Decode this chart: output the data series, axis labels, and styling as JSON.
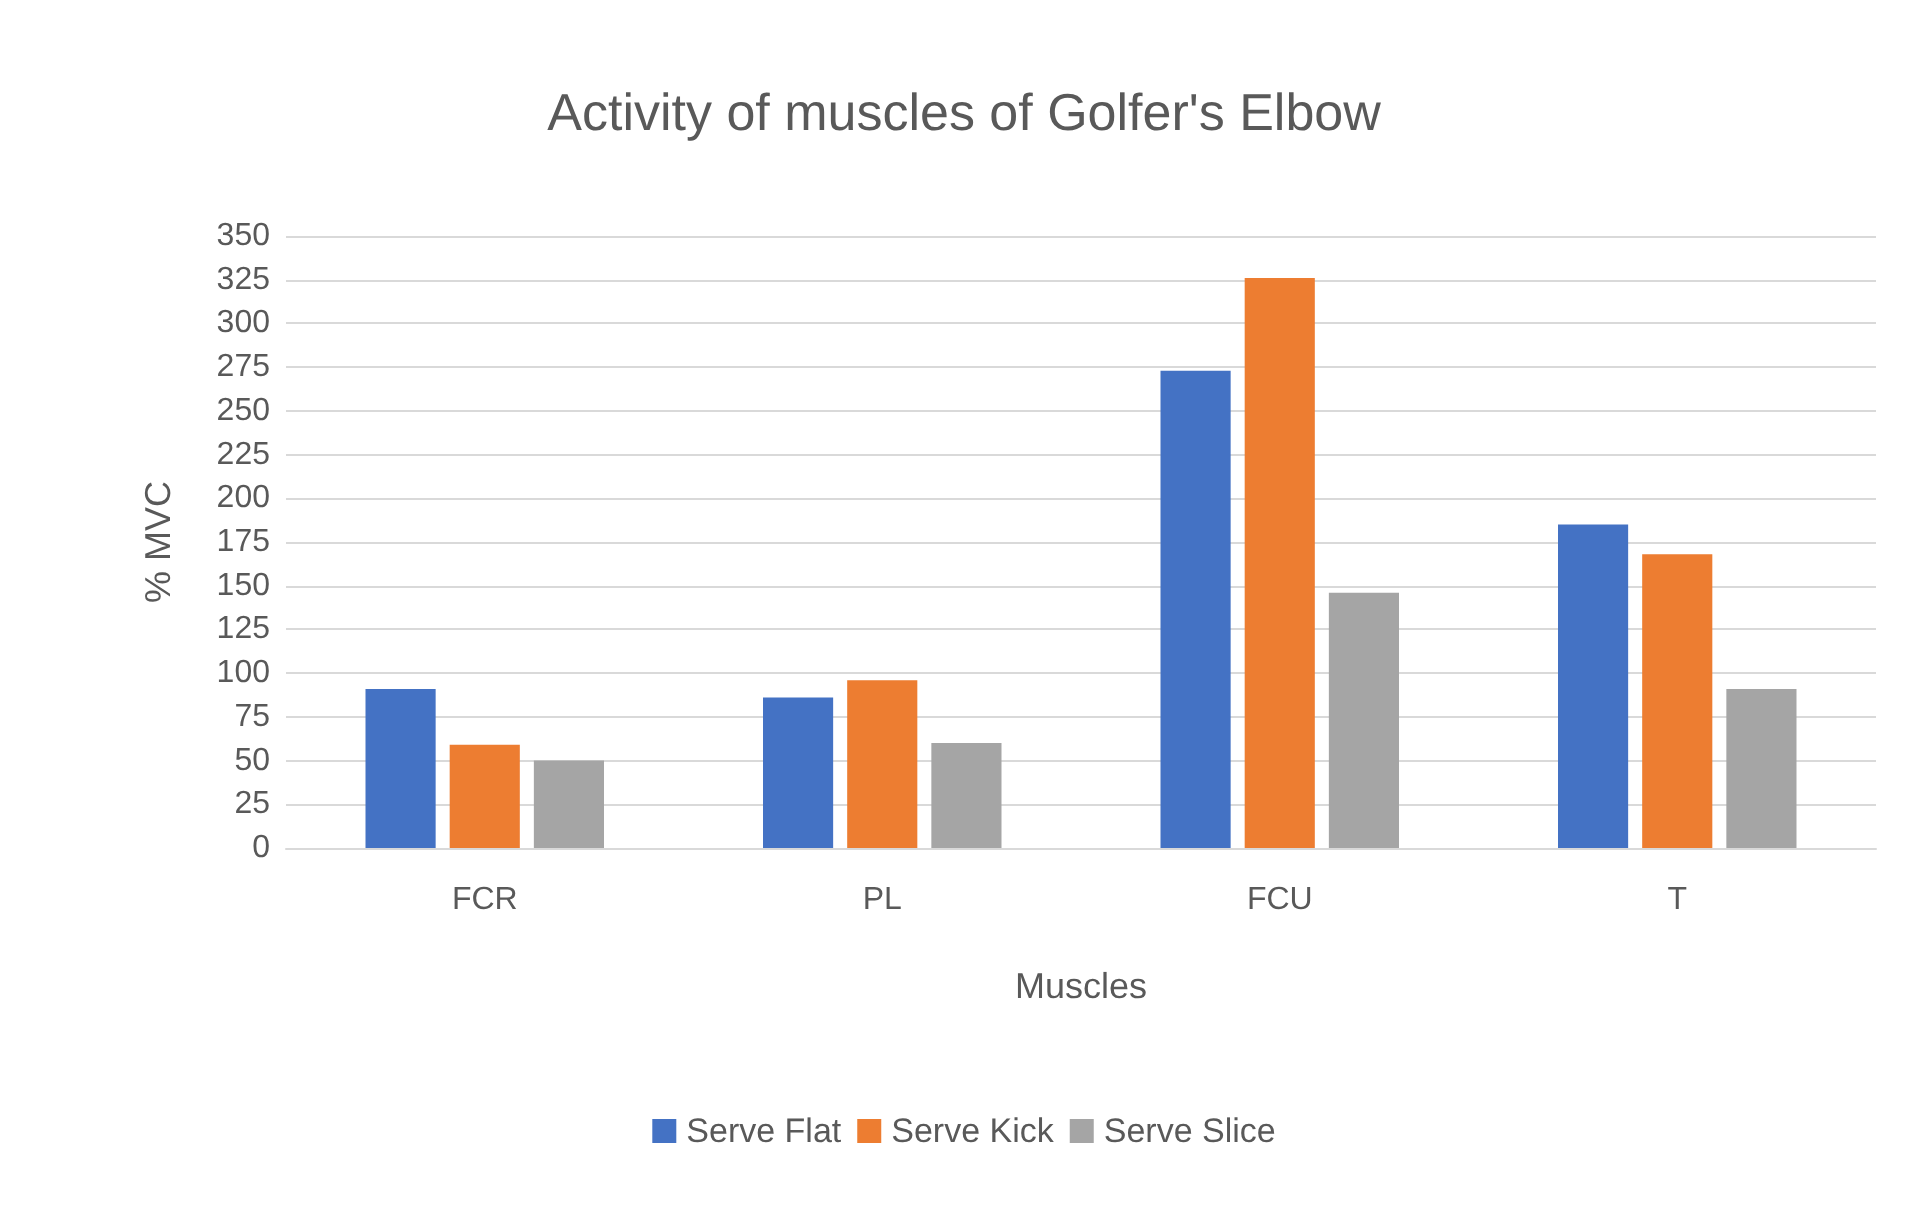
{
  "chart_data": {
    "type": "bar",
    "title": "Activity of muscles of Golfer's Elbow",
    "xlabel": "Muscles",
    "ylabel": "% MVC",
    "categories": [
      "FCR",
      "PL",
      "FCU",
      "T"
    ],
    "series": [
      {
        "name": "Serve Flat",
        "color": "#4472c4",
        "values": [
          91,
          86,
          273,
          185
        ]
      },
      {
        "name": "Serve Kick",
        "color": "#ed7d31",
        "values": [
          59,
          96,
          326,
          168
        ]
      },
      {
        "name": "Serve Slice",
        "color": "#a5a5a5",
        "values": [
          50,
          60,
          146,
          91
        ]
      }
    ],
    "ylim": [
      0,
      350
    ],
    "yticks": [
      0,
      25,
      50,
      75,
      100,
      125,
      150,
      175,
      200,
      225,
      250,
      275,
      300,
      325,
      350
    ],
    "grid": "y",
    "legend": "bottom"
  }
}
